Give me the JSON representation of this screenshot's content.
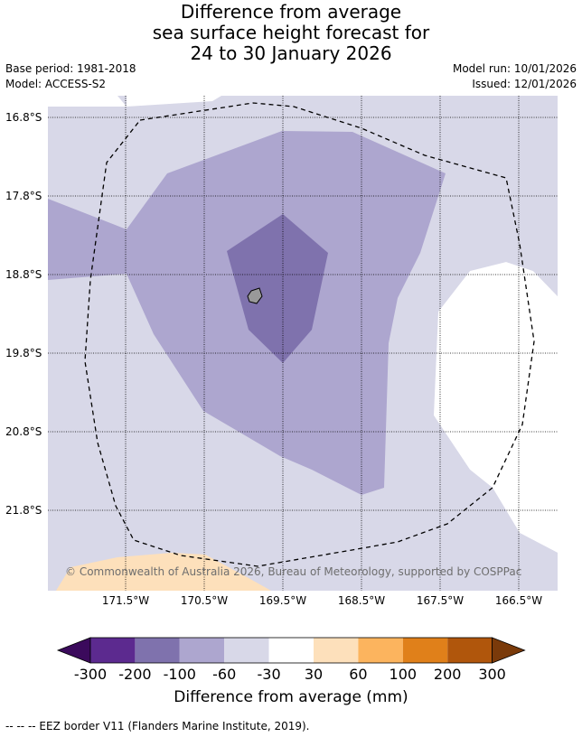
{
  "title": {
    "line1": "Difference from average",
    "line2": "sea surface height forecast for",
    "line3": "24 to 30 January 2026"
  },
  "meta": {
    "base_period": "Base period: 1981-2018",
    "model": "Model: ACCESS-S2",
    "model_run": "Model run: 10/01/2026",
    "issued": "Issued: 12/01/2026"
  },
  "map": {
    "latitude_labels": [
      "16.8°S",
      "17.8°S",
      "18.8°S",
      "19.8°S",
      "20.8°S",
      "21.8°S"
    ],
    "longitude_labels": [
      "171.5°W",
      "170.5°W",
      "169.5°W",
      "168.5°W",
      "167.5°W",
      "166.5°W"
    ],
    "copyright": "© Commonwealth of Australia 2026, Bureau of Meteorology, supported by COSPPac"
  },
  "colorbar": {
    "tick_labels": [
      "-300",
      "-200",
      "-100",
      "-60",
      "-30",
      "30",
      "60",
      "100",
      "200",
      "300"
    ],
    "colors": [
      "#3b0a5c",
      "#5c2a8f",
      "#7f72ad",
      "#ada6cf",
      "#d8d8e8",
      "#ffffff",
      "#fde0bb",
      "#fcb45e",
      "#e0801a",
      "#b0560c",
      "#7a3a0a"
    ],
    "label": "Difference from average (mm)"
  },
  "footnote": "--  --  -- EEZ border V11 (Flanders Marine Institute, 2019)."
}
